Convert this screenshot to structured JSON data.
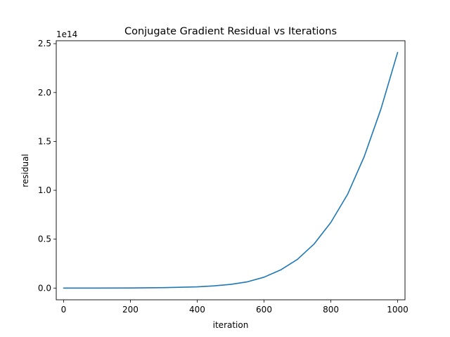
{
  "chart_data": {
    "type": "line",
    "title": "Conjugate Gradient Residual vs Iterations",
    "xlabel": "iteration",
    "ylabel": "residual",
    "y_offset_label": "1e14",
    "xlim": [
      -22,
      1022
    ],
    "ylim": [
      -0.12,
      2.53
    ],
    "y_scale_factor": 100000000000000.0,
    "grid": false,
    "legend": "none",
    "x_ticks": [
      0,
      200,
      400,
      600,
      800,
      1000
    ],
    "x_tick_labels": [
      "0",
      "200",
      "400",
      "600",
      "800",
      "1000"
    ],
    "y_ticks": [
      0.0,
      0.5,
      1.0,
      1.5,
      2.0,
      2.5
    ],
    "y_tick_labels": [
      "0.0",
      "0.5",
      "1.0",
      "1.5",
      "2.0",
      "2.5"
    ],
    "series": [
      {
        "color": "#1f77b4",
        "x": [
          0,
          100,
          200,
          300,
          400,
          450,
          500,
          550,
          600,
          650,
          700,
          750,
          800,
          850,
          900,
          950,
          1000
        ],
        "y": [
          0.0,
          0.0,
          0.001,
          0.004,
          0.012,
          0.022,
          0.037,
          0.064,
          0.111,
          0.186,
          0.294,
          0.452,
          0.671,
          0.958,
          1.345,
          1.832,
          2.41
        ]
      }
    ]
  }
}
